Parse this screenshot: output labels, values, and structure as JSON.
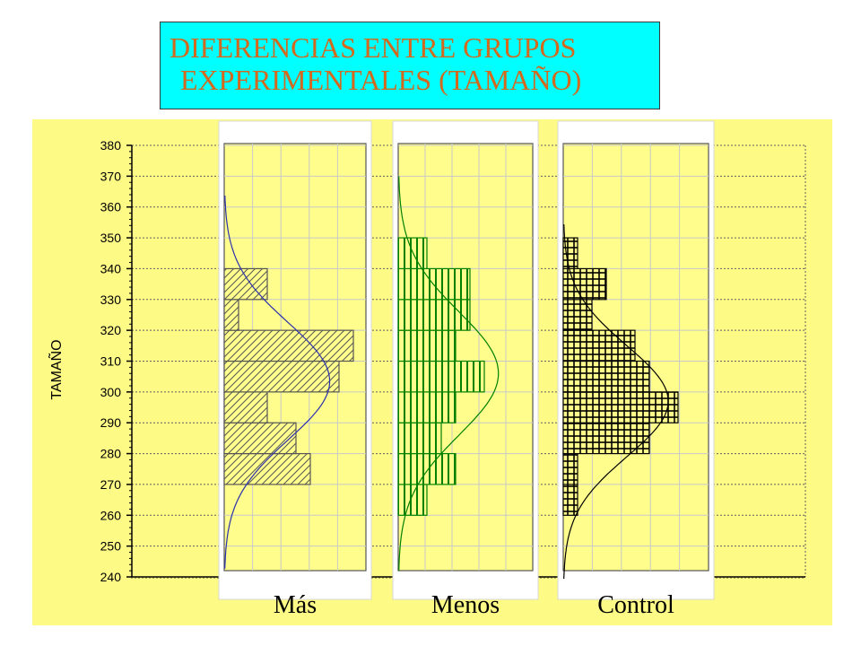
{
  "title": {
    "line1": "DIFERENCIAS ENTRE GRUPOS",
    "line2": "EXPERIMENTALES (TAMAÑO)"
  },
  "colors": {
    "title_bg": "#00ffff",
    "title_text": "#d2691e",
    "plot_bg": "#fdfa86",
    "panel_bg": "#fffe8c",
    "mas": "#2a2fae",
    "menos": "#008000",
    "control": "#000000"
  },
  "chart_data": {
    "type": "bar",
    "orientation": "horizontal-histograms",
    "ylabel": "TAMAÑO",
    "ylim": [
      240,
      380
    ],
    "yticks": [
      "240",
      "250",
      "260",
      "270",
      "280",
      "290",
      "300",
      "310",
      "320",
      "330",
      "340",
      "350",
      "360",
      "370",
      "380"
    ],
    "grid": true,
    "bin_width": 10,
    "groups": [
      {
        "name": "Más",
        "pattern": "diagonal",
        "bins": [
          {
            "from": 270,
            "to": 280,
            "count": 6
          },
          {
            "from": 280,
            "to": 290,
            "count": 5
          },
          {
            "from": 290,
            "to": 300,
            "count": 3
          },
          {
            "from": 300,
            "to": 310,
            "count": 8
          },
          {
            "from": 310,
            "to": 320,
            "count": 9
          },
          {
            "from": 320,
            "to": 330,
            "count": 1
          },
          {
            "from": 330,
            "to": 340,
            "count": 3
          }
        ],
        "normal_fit": {
          "mean": 303.5,
          "sd": 19
        }
      },
      {
        "name": "Menos",
        "pattern": "vertical",
        "bins": [
          {
            "from": 260,
            "to": 270,
            "count": 2
          },
          {
            "from": 270,
            "to": 280,
            "count": 4
          },
          {
            "from": 280,
            "to": 290,
            "count": 3
          },
          {
            "from": 290,
            "to": 300,
            "count": 4
          },
          {
            "from": 300,
            "to": 310,
            "count": 6
          },
          {
            "from": 310,
            "to": 320,
            "count": 4
          },
          {
            "from": 320,
            "to": 330,
            "count": 5
          },
          {
            "from": 330,
            "to": 340,
            "count": 5
          },
          {
            "from": 340,
            "to": 350,
            "count": 2
          }
        ],
        "normal_fit": {
          "mean": 306,
          "sd": 20
        }
      },
      {
        "name": "Control",
        "pattern": "grid",
        "bins": [
          {
            "from": 260,
            "to": 270,
            "count": 1
          },
          {
            "from": 270,
            "to": 280,
            "count": 1
          },
          {
            "from": 280,
            "to": 290,
            "count": 6
          },
          {
            "from": 290,
            "to": 300,
            "count": 8
          },
          {
            "from": 300,
            "to": 310,
            "count": 6
          },
          {
            "from": 310,
            "to": 320,
            "count": 5
          },
          {
            "from": 320,
            "to": 330,
            "count": 2
          },
          {
            "from": 330,
            "to": 340,
            "count": 3
          },
          {
            "from": 340,
            "to": 350,
            "count": 1
          }
        ],
        "normal_fit": {
          "mean": 297,
          "sd": 18
        }
      }
    ]
  }
}
